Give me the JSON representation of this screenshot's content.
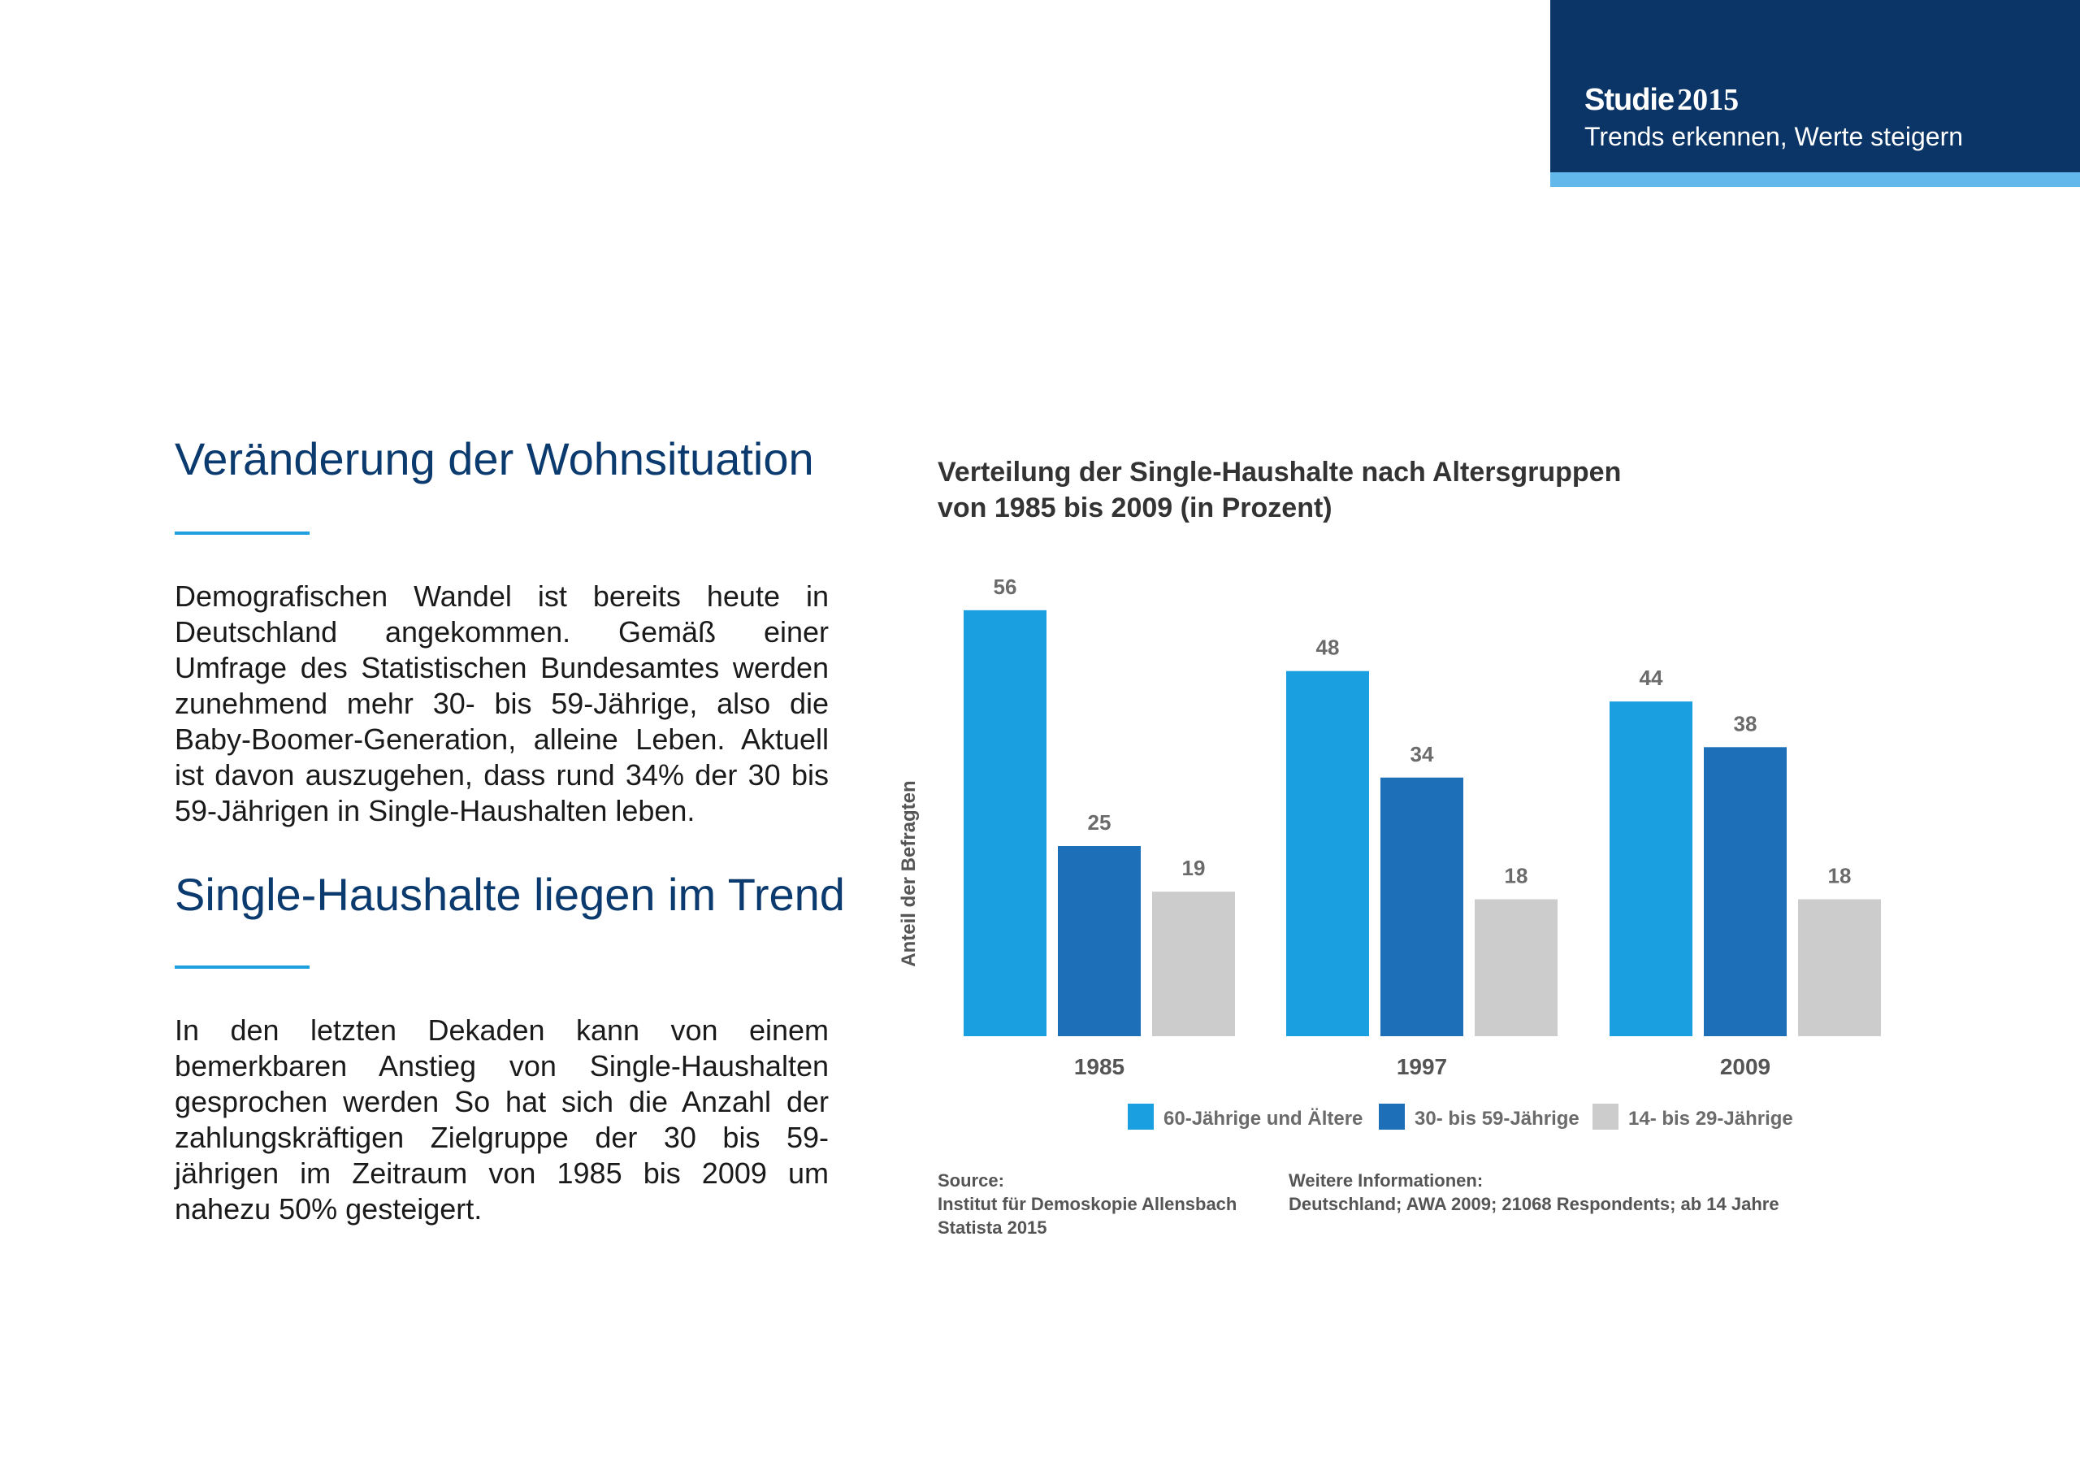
{
  "header": {
    "brand_word": "Studie",
    "brand_year": "2015",
    "tagline": "Trends erkennen, Werte steigern",
    "colors": {
      "box": "#0b3566",
      "strip": "#62b8ea"
    }
  },
  "sections": [
    {
      "heading": "Veränderung der Wohnsituation",
      "body": "Demografischen Wandel ist bereits heute in Deutschland angekommen. Gemäß einer Umfrage des Statistischen Bundesamtes werden zunehmend mehr 30- bis 59-Jährige, also die Baby-Boomer-Generation, alleine Leben. Aktuell ist davon auszugehen, dass rund 34% der 30 bis 59-Jährigen in Single-Haushalten leben."
    },
    {
      "heading": "Single-Haushalte liegen im Trend",
      "body": "In den letzten Dekaden kann von einem bemerkbaren Anstieg von Single-Haushalten gesprochen werden So hat sich die Anzahl der zahlungskräftigen Zielgruppe der 30 bis 59-jährigen im Zeitraum von 1985 bis 2009 um nahezu 50% gesteigert."
    }
  ],
  "chart_data": {
    "type": "bar",
    "title_lines": [
      "Verteilung der Single-Haushalte nach Altersgruppen",
      "von 1985 bis 2009 (in Prozent)"
    ],
    "ylabel": "Anteil der Befragten",
    "xlabel": "",
    "ylim": [
      0,
      60
    ],
    "grid": false,
    "legend_position": "bottom",
    "categories": [
      "1985",
      "1997",
      "2009"
    ],
    "series": [
      {
        "name": "60-Jährige und Ältere",
        "color": "#1a9fe0",
        "values": [
          56,
          48,
          44
        ]
      },
      {
        "name": "30- bis 59-Jährige",
        "color": "#1d6fb8",
        "values": [
          25,
          34,
          38
        ]
      },
      {
        "name": "14- bis 29-Jährige",
        "color": "#cccccc",
        "values": [
          19,
          18,
          18
        ]
      }
    ],
    "source": {
      "label": "Source:",
      "lines": [
        "Institut für Demoskopie Allensbach",
        "Statista 2015"
      ]
    },
    "info": {
      "label": "Weitere Informationen:",
      "lines": [
        "Deutschland; AWA 2009; 21068 Respondents; ab 14 Jahre"
      ]
    }
  }
}
